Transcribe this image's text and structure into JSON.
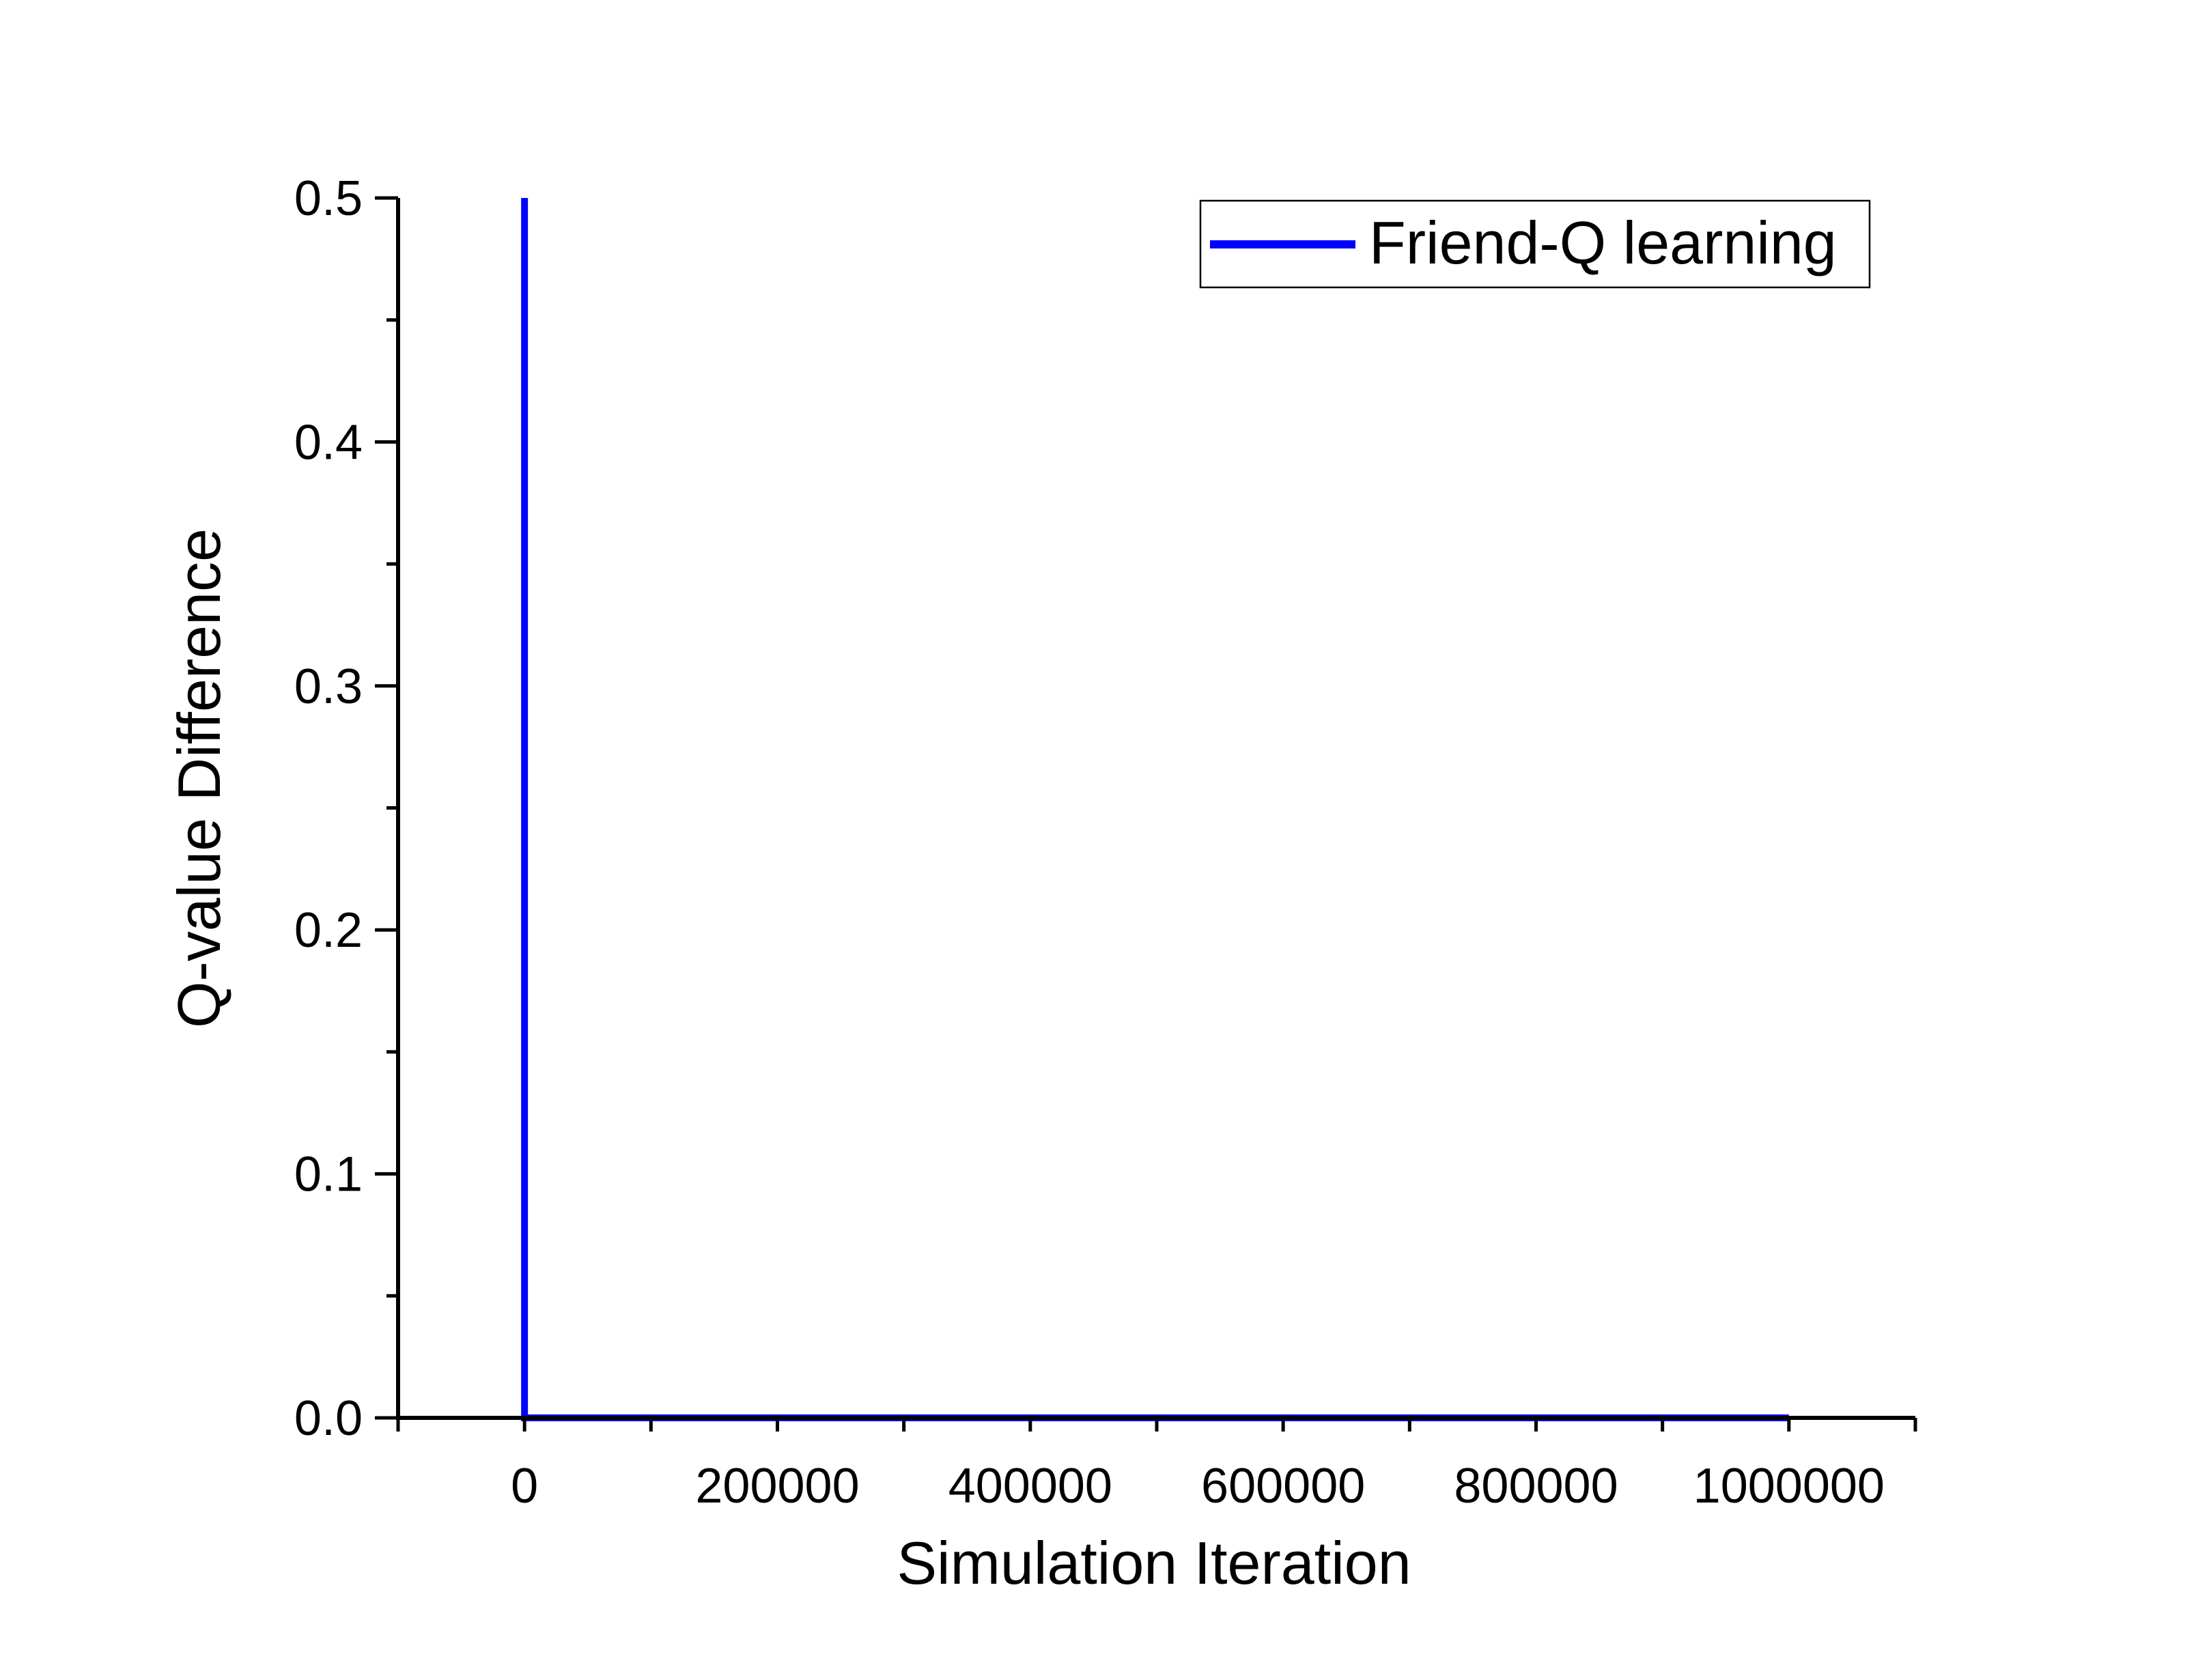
{
  "chart_data": {
    "type": "line",
    "title": "",
    "xlabel": "Simulation Iteration",
    "ylabel": "Q-value Difference",
    "xlim": [
      -100000,
      1100000
    ],
    "ylim": [
      0,
      0.5
    ],
    "x_ticks": [
      0,
      200000,
      400000,
      600000,
      800000,
      1000000
    ],
    "x_tick_labels": [
      "0",
      "200000",
      "400000",
      "600000",
      "800000",
      "1000000"
    ],
    "y_ticks": [
      0,
      0.1,
      0.2,
      0.3,
      0.4,
      0.5
    ],
    "y_tick_labels": [
      "0.0",
      "0.1",
      "0.2",
      "0.3",
      "0.4",
      "0.5"
    ],
    "grid": false,
    "legend_position": "top-right",
    "series": [
      {
        "name": "Friend-Q learning",
        "color": "#0000ff",
        "x": [
          0,
          0,
          1000000
        ],
        "y": [
          0.5,
          0,
          0
        ]
      }
    ]
  }
}
